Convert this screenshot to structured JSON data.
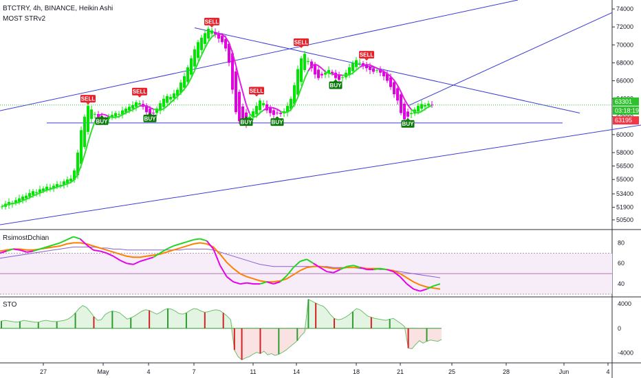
{
  "header": {
    "symbol_line": "BTCTRY, 4h, BINANCE, Heikin Ashi",
    "indicator_line": "MOST STRv2"
  },
  "panes": {
    "rsi_title": "RsimostDchian",
    "sto_title": "STO"
  },
  "price_tags": {
    "last_price": "63301",
    "countdown": "03:18:19",
    "most_level": "63195"
  },
  "colors": {
    "bull": "#00e600",
    "bear": "#e000e0",
    "most_up": "#2dde2d",
    "most_down": "#e21de2",
    "trend": "#3b3bd6",
    "sell": "#e8202a",
    "buy": "#0a7a0a",
    "rsi_fast": "#23d423",
    "rsi_fast_dn": "#e600e6",
    "rsi_slow": "#ff7f00",
    "rsi_base": "#8a5cd6",
    "sto_pos": "#2e9c2e",
    "sto_neg": "#d42020",
    "sto_pos_fill": "#e3f4e3",
    "sto_neg_fill": "#fbe2e2"
  },
  "chart_data": [
    {
      "type": "candlestick",
      "title": "BTCTRY, 4h, BINANCE, Heikin Ashi",
      "indicator": "MOST STRv2",
      "x_tick_labels": [
        "27",
        "May",
        "4",
        "7",
        "11",
        "14",
        "18",
        "21",
        "25",
        "28",
        "Jun",
        "4"
      ],
      "y_ticks": [
        50500,
        51900,
        53400,
        55000,
        56500,
        58000,
        60000,
        62000,
        64000,
        66000,
        68000,
        70000,
        72000,
        74000
      ],
      "ylim": [
        49500,
        75000
      ],
      "closes": [
        52000,
        52300,
        52500,
        52400,
        52700,
        52900,
        53100,
        53200,
        53500,
        53700,
        53600,
        53900,
        54000,
        54200,
        54100,
        54300,
        54500,
        54400,
        54800,
        55000,
        55100,
        56000,
        58000,
        60500,
        62000,
        63200,
        62800,
        62300,
        61800,
        61500,
        61700,
        62000,
        62200,
        62400,
        62300,
        62700,
        62900,
        63100,
        63300,
        63600,
        63500,
        63100,
        62500,
        62000,
        62400,
        62900,
        63500,
        64000,
        64300,
        64200,
        64600,
        65000,
        65800,
        66500,
        67500,
        68500,
        69500,
        70300,
        70800,
        71300,
        71800,
        71600,
        71200,
        70700,
        70300,
        69600,
        68000,
        65000,
        62500,
        61500,
        61800,
        61200,
        62000,
        62600,
        63200,
        63800,
        63500,
        62700,
        62400,
        62200,
        62400,
        62300,
        62600,
        63200,
        64000,
        65500,
        67300,
        68500,
        69000,
        68200,
        67400,
        66700,
        66300,
        66600,
        66900,
        67200,
        66800,
        66300,
        66100,
        66400,
        66900,
        67500,
        68000,
        68300,
        68000,
        67600,
        67400,
        67200,
        67000,
        67200,
        66900,
        66500,
        66000,
        65300,
        64500,
        63800,
        62400,
        61700,
        62000,
        62400,
        62800,
        63200,
        63400,
        63300,
        63450,
        63301
      ],
      "signals": [
        {
          "label": "SELL",
          "bar": 25,
          "price": 64000
        },
        {
          "label": "BUY",
          "bar": 29,
          "price": 61500
        },
        {
          "label": "SELL",
          "bar": 40,
          "price": 64800
        },
        {
          "label": "BUY",
          "bar": 43,
          "price": 61800
        },
        {
          "label": "SELL",
          "bar": 61,
          "price": 72600
        },
        {
          "label": "BUY",
          "bar": 71,
          "price": 61400
        },
        {
          "label": "SELL",
          "bar": 74,
          "price": 64900
        },
        {
          "label": "BUY",
          "bar": 80,
          "price": 61400
        },
        {
          "label": "SELL",
          "bar": 87,
          "price": 70300
        },
        {
          "label": "BUY",
          "bar": 97,
          "price": 65500
        },
        {
          "label": "SELL",
          "bar": 106,
          "price": 68900
        },
        {
          "label": "BUY",
          "bar": 118,
          "price": 61200
        }
      ]
    },
    {
      "type": "line",
      "title": "RsimostDchian",
      "y_ticks": [
        40,
        60,
        80
      ],
      "ylim": [
        28,
        93
      ],
      "bands": [
        30,
        50,
        70
      ],
      "series": [
        {
          "values": [
            70,
            72,
            74,
            73,
            71,
            72,
            74,
            76,
            78,
            80,
            83,
            86,
            84,
            78,
            73,
            72,
            70,
            67,
            63,
            60,
            59,
            62,
            64,
            66,
            70,
            74,
            77,
            79,
            81,
            83,
            84,
            82,
            74,
            58,
            47,
            42,
            40,
            41,
            40,
            40,
            42,
            40,
            42,
            48,
            56,
            62,
            64,
            60,
            56,
            52,
            51,
            54,
            57,
            58,
            56,
            54,
            54,
            55,
            54,
            52,
            47,
            40,
            35,
            33,
            35,
            38,
            40
          ]
        },
        {
          "values": [
            72,
            73,
            74,
            74,
            73,
            73,
            74,
            75,
            76,
            77,
            79,
            80,
            80,
            79,
            77,
            75,
            73,
            71,
            69,
            67,
            66,
            66,
            67,
            68,
            69,
            71,
            73,
            75,
            77,
            79,
            80,
            79,
            76,
            69,
            61,
            55,
            50,
            47,
            45,
            43,
            42,
            42,
            43,
            45,
            49,
            53,
            56,
            57,
            57,
            56,
            55,
            55,
            56,
            56,
            56,
            55,
            55,
            55,
            54,
            53,
            50,
            46,
            42,
            39,
            37,
            36,
            35
          ]
        },
        {
          "values": [
            65,
            66,
            67,
            68,
            69,
            70,
            71,
            72,
            73,
            74,
            75,
            76,
            76,
            76,
            76,
            75,
            75,
            74,
            74,
            73,
            73,
            73,
            73,
            73,
            73,
            73,
            73,
            73,
            74,
            74,
            74,
            74,
            73,
            71,
            69,
            67,
            65,
            63,
            61,
            59,
            58,
            57,
            57,
            57,
            57,
            57,
            57,
            57,
            57,
            57,
            56,
            56,
            56,
            56,
            55,
            55,
            55,
            54,
            54,
            53,
            52,
            51,
            50,
            49,
            48,
            47,
            46
          ]
        }
      ]
    },
    {
      "type": "histogram",
      "title": "STO",
      "y_ticks": [
        4000,
        0,
        -4000
      ],
      "ylim": [
        -5600,
        5100
      ],
      "values": [
        1200,
        1300,
        1200,
        1100,
        1000,
        1100,
        1300,
        1200,
        1100,
        1000,
        1000,
        1200,
        1300,
        1200,
        1100,
        1100,
        1200,
        1300,
        1500,
        1900,
        2500,
        3200,
        3700,
        3400,
        2700,
        1900,
        1300,
        1400,
        2200,
        2600,
        2800,
        2700,
        2500,
        2000,
        1500,
        1700,
        2000,
        2400,
        2800,
        3000,
        2900,
        2600,
        2300,
        2600,
        3000,
        3200,
        3100,
        2800,
        2400,
        2300,
        2500,
        2900,
        3200,
        3100,
        2800,
        2600,
        2700,
        2900,
        3000,
        2900,
        2500,
        2000,
        1400,
        -3500,
        -4600,
        -5100,
        -4800,
        -4600,
        -4200,
        -3900,
        -4100,
        -3700,
        -4300,
        -4100,
        -4400,
        -4200,
        -3900,
        -3500,
        -3000,
        -2500,
        -2000,
        -1200,
        -600,
        4700,
        4400,
        4100,
        3800,
        3600,
        3000,
        2200,
        1600,
        1400,
        1500,
        1800,
        2200,
        2700,
        3200,
        3000,
        2500,
        2000,
        1800,
        1600,
        1500,
        1400,
        1300,
        1500,
        1600,
        1200,
        800,
        300,
        -3200,
        -3300,
        -2600,
        -2000,
        -2400,
        -2100,
        -1900,
        -2000,
        -2100,
        -1800
      ]
    }
  ]
}
